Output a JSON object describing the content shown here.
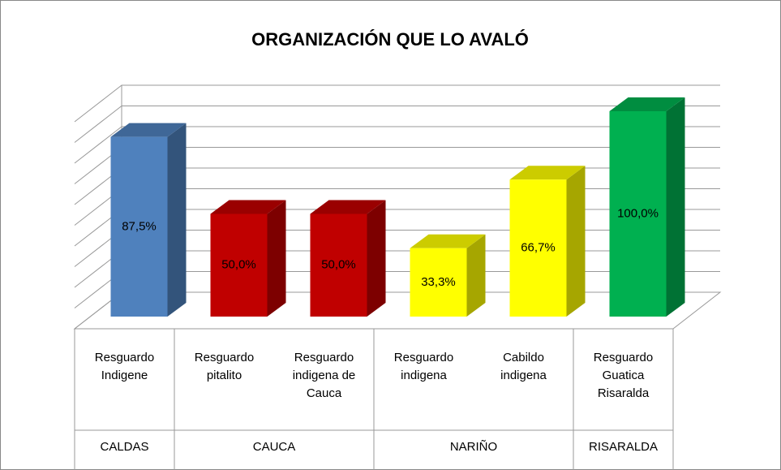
{
  "chart_data": {
    "type": "bar3d",
    "title": "ORGANIZACIÓN QUE LO AVALÓ",
    "groups": [
      {
        "name": "CALDAS",
        "color": "#4f81bd",
        "categories": [
          "Resguardo Indigene"
        ],
        "values": [
          87.5
        ],
        "value_labels": [
          "87,5%"
        ]
      },
      {
        "name": "CAUCA",
        "color": "#c00000",
        "categories": [
          "Resguardo pitalito",
          "Resguardo indigena de Cauca"
        ],
        "values": [
          50,
          50
        ],
        "value_labels": [
          "50,0%",
          "50,0%"
        ]
      },
      {
        "name": "NARIÑO",
        "color": "#ffff00",
        "categories": [
          "Resguardo indigena",
          "Cabildo indigena"
        ],
        "values": [
          33.3,
          66.7
        ],
        "value_labels": [
          "33,3%",
          "66,7%"
        ]
      },
      {
        "name": "RISARALDA",
        "color": "#00b050",
        "categories": [
          "Resguardo Guatica Risaralda"
        ],
        "values": [
          100
        ],
        "value_labels": [
          "100,0%"
        ]
      }
    ],
    "ylim": [
      0,
      100
    ],
    "yticks": [
      0,
      10,
      20,
      30,
      40,
      50,
      60,
      70,
      80,
      90,
      100
    ],
    "grid": true
  }
}
